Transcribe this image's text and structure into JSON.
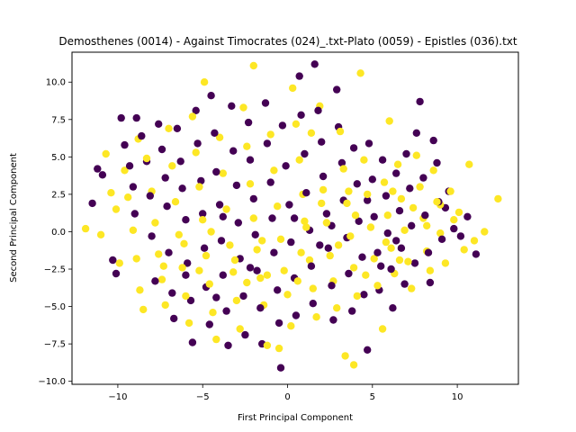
{
  "chart_data": {
    "type": "scatter",
    "title": "Demosthenes (0014) - Against Timocrates (024)_.txt-Plato (0059) - Epistles (036).txt",
    "xlabel": "First Principal Component",
    "ylabel": "Second Principal Component",
    "xlim": [
      -12.7,
      13.6
    ],
    "ylim": [
      -10.2,
      12.0
    ],
    "xticks": [
      -10,
      -5,
      0,
      5,
      10
    ],
    "yticks": [
      -10.0,
      -7.5,
      -5.0,
      -2.5,
      0.0,
      2.5,
      5.0,
      7.5,
      10.0
    ],
    "grid": false,
    "legend": "none",
    "colors": {
      "dark": "#440154",
      "light": "#fde725"
    },
    "series": [
      {
        "color": "#440154",
        "points": [
          [
            -11.2,
            4.2
          ],
          [
            -10.9,
            3.8
          ],
          [
            -11.5,
            1.9
          ],
          [
            -10.3,
            -1.9
          ],
          [
            -10.1,
            -2.8
          ],
          [
            -9.8,
            7.6
          ],
          [
            -9.6,
            5.8
          ],
          [
            -9.3,
            4.4
          ],
          [
            -9.1,
            3.0
          ],
          [
            -9.0,
            1.2
          ],
          [
            -8.9,
            7.6
          ],
          [
            -8.6,
            6.4
          ],
          [
            -8.3,
            4.7
          ],
          [
            -8.1,
            2.4
          ],
          [
            -8.0,
            -0.3
          ],
          [
            -7.8,
            -3.3
          ],
          [
            -7.6,
            7.2
          ],
          [
            -7.4,
            5.5
          ],
          [
            -7.2,
            3.6
          ],
          [
            -7.1,
            1.7
          ],
          [
            -7.0,
            -1.4
          ],
          [
            -6.8,
            -4.1
          ],
          [
            -6.7,
            -5.8
          ],
          [
            -6.5,
            6.9
          ],
          [
            -6.3,
            4.7
          ],
          [
            -6.2,
            2.9
          ],
          [
            -6.0,
            0.8
          ],
          [
            -5.9,
            -2.1
          ],
          [
            -5.7,
            -4.6
          ],
          [
            -5.6,
            -7.4
          ],
          [
            -5.4,
            8.1
          ],
          [
            -5.3,
            5.9
          ],
          [
            -5.1,
            3.4
          ],
          [
            -5.0,
            1.2
          ],
          [
            -4.9,
            -1.1
          ],
          [
            -4.8,
            -3.7
          ],
          [
            -4.6,
            -6.2
          ],
          [
            -4.5,
            9.1
          ],
          [
            -4.3,
            6.6
          ],
          [
            -4.2,
            4.0
          ],
          [
            -4.0,
            1.8
          ],
          [
            -3.9,
            -0.6
          ],
          [
            -3.8,
            -2.9
          ],
          [
            -3.6,
            -5.3
          ],
          [
            -3.5,
            -7.6
          ],
          [
            -3.3,
            8.4
          ],
          [
            -3.2,
            5.4
          ],
          [
            -3.0,
            3.1
          ],
          [
            -2.9,
            0.6
          ],
          [
            -2.8,
            -1.8
          ],
          [
            -2.6,
            -4.3
          ],
          [
            -2.5,
            -6.9
          ],
          [
            -2.3,
            7.3
          ],
          [
            -2.2,
            4.8
          ],
          [
            -2.0,
            2.2
          ],
          [
            -1.9,
            -0.2
          ],
          [
            -1.8,
            -2.6
          ],
          [
            -1.6,
            -5.1
          ],
          [
            -1.5,
            -7.5
          ],
          [
            -1.3,
            8.6
          ],
          [
            -1.2,
            5.9
          ],
          [
            -1.0,
            3.3
          ],
          [
            -0.9,
            0.9
          ],
          [
            -0.8,
            -1.4
          ],
          [
            -0.6,
            -3.9
          ],
          [
            -0.5,
            -6.1
          ],
          [
            -0.4,
            -9.1
          ],
          [
            -0.3,
            7.1
          ],
          [
            -0.1,
            4.4
          ],
          [
            0.1,
            1.8
          ],
          [
            0.2,
            -0.7
          ],
          [
            0.4,
            -3.1
          ],
          [
            0.5,
            -5.6
          ],
          [
            0.7,
            10.4
          ],
          [
            0.8,
            7.8
          ],
          [
            1.0,
            5.2
          ],
          [
            1.1,
            2.6
          ],
          [
            1.3,
            0.1
          ],
          [
            1.4,
            -2.3
          ],
          [
            1.5,
            -4.8
          ],
          [
            1.6,
            11.2
          ],
          [
            1.8,
            8.1
          ],
          [
            2.0,
            6.0
          ],
          [
            2.1,
            3.7
          ],
          [
            2.3,
            1.2
          ],
          [
            2.4,
            -1.1
          ],
          [
            2.6,
            -3.6
          ],
          [
            2.7,
            -5.9
          ],
          [
            2.9,
            9.5
          ],
          [
            3.0,
            7.0
          ],
          [
            3.2,
            4.6
          ],
          [
            3.3,
            2.1
          ],
          [
            3.5,
            -0.4
          ],
          [
            3.6,
            -2.8
          ],
          [
            3.8,
            -5.3
          ],
          [
            3.9,
            5.6
          ],
          [
            4.1,
            3.2
          ],
          [
            4.2,
            0.7
          ],
          [
            4.4,
            -1.7
          ],
          [
            4.5,
            -4.2
          ],
          [
            4.7,
            -7.9
          ],
          [
            4.8,
            5.9
          ],
          [
            5.0,
            3.5
          ],
          [
            5.1,
            1.0
          ],
          [
            5.3,
            -1.4
          ],
          [
            5.4,
            -3.9
          ],
          [
            5.6,
            4.8
          ],
          [
            5.8,
            2.4
          ],
          [
            5.9,
            -0.1
          ],
          [
            6.1,
            -2.5
          ],
          [
            6.2,
            -5.1
          ],
          [
            6.4,
            3.9
          ],
          [
            6.6,
            1.4
          ],
          [
            6.7,
            -1.1
          ],
          [
            6.9,
            -3.5
          ],
          [
            7.0,
            5.2
          ],
          [
            7.2,
            2.9
          ],
          [
            7.3,
            0.4
          ],
          [
            7.5,
            -2.1
          ],
          [
            7.6,
            6.6
          ],
          [
            7.8,
            8.7
          ],
          [
            8.0,
            3.6
          ],
          [
            8.1,
            1.1
          ],
          [
            8.3,
            -1.4
          ],
          [
            8.4,
            -3.4
          ],
          [
            8.6,
            6.1
          ],
          [
            8.8,
            4.6
          ],
          [
            8.9,
            2.0
          ],
          [
            9.1,
            -0.5
          ],
          [
            9.3,
            1.6
          ],
          [
            9.5,
            2.7
          ],
          [
            9.8,
            0.2
          ],
          [
            10.2,
            -0.3
          ],
          [
            10.6,
            1.0
          ],
          [
            11.1,
            -1.5
          ],
          [
            -6.0,
            -2.9
          ],
          [
            -4.2,
            -4.4
          ],
          [
            -2.2,
            -2.4
          ],
          [
            0.4,
            0.9
          ],
          [
            2.6,
            0.4
          ],
          [
            4.7,
            2.1
          ],
          [
            6.4,
            -0.6
          ],
          [
            -3.8,
            1.0
          ],
          [
            1.9,
            -0.9
          ],
          [
            5.5,
            -2.3
          ]
        ]
      },
      {
        "color": "#fde725",
        "points": [
          [
            -11.9,
            0.2
          ],
          [
            -11.0,
            -0.2
          ],
          [
            -10.7,
            5.2
          ],
          [
            -10.4,
            2.6
          ],
          [
            -10.1,
            1.5
          ],
          [
            -9.9,
            -2.1
          ],
          [
            -9.6,
            4.1
          ],
          [
            -9.4,
            2.3
          ],
          [
            -9.1,
            0.1
          ],
          [
            -8.9,
            -1.8
          ],
          [
            -8.7,
            -3.9
          ],
          [
            -8.5,
            -5.2
          ],
          [
            -8.3,
            4.9
          ],
          [
            -8.0,
            2.7
          ],
          [
            -7.8,
            0.6
          ],
          [
            -7.6,
            -1.5
          ],
          [
            -7.4,
            -3.2
          ],
          [
            -7.2,
            -4.9
          ],
          [
            -7.0,
            6.9
          ],
          [
            -6.8,
            4.4
          ],
          [
            -6.6,
            2.0
          ],
          [
            -6.4,
            -0.2
          ],
          [
            -6.2,
            -2.4
          ],
          [
            -6.0,
            -4.3
          ],
          [
            -5.8,
            -6.1
          ],
          [
            -5.6,
            7.7
          ],
          [
            -5.4,
            5.3
          ],
          [
            -5.2,
            3.0
          ],
          [
            -5.0,
            0.8
          ],
          [
            -4.8,
            -1.6
          ],
          [
            -4.6,
            -3.5
          ],
          [
            -4.4,
            -5.4
          ],
          [
            -4.2,
            -7.2
          ],
          [
            -4.9,
            10.0
          ],
          [
            -4.0,
            6.3
          ],
          [
            -3.8,
            3.9
          ],
          [
            -3.6,
            1.5
          ],
          [
            -3.4,
            -0.9
          ],
          [
            -3.2,
            -2.7
          ],
          [
            -3.0,
            -4.6
          ],
          [
            -2.8,
            -6.5
          ],
          [
            -2.6,
            8.3
          ],
          [
            -2.4,
            5.7
          ],
          [
            -2.2,
            3.2
          ],
          [
            -2.0,
            0.9
          ],
          [
            -1.8,
            -1.2
          ],
          [
            -1.6,
            -3.1
          ],
          [
            -1.4,
            -4.9
          ],
          [
            -1.2,
            -7.6
          ],
          [
            -2.0,
            11.1
          ],
          [
            -1.0,
            6.5
          ],
          [
            -0.8,
            4.1
          ],
          [
            -0.6,
            1.7
          ],
          [
            -0.4,
            -0.5
          ],
          [
            -0.2,
            -2.6
          ],
          [
            0.0,
            -4.2
          ],
          [
            0.2,
            -6.3
          ],
          [
            -0.5,
            -7.8
          ],
          [
            0.3,
            9.6
          ],
          [
            0.5,
            7.2
          ],
          [
            0.7,
            4.8
          ],
          [
            0.9,
            2.5
          ],
          [
            1.1,
            0.3
          ],
          [
            1.3,
            -1.9
          ],
          [
            1.5,
            -3.8
          ],
          [
            1.7,
            -5.7
          ],
          [
            1.4,
            6.6
          ],
          [
            1.9,
            8.4
          ],
          [
            2.1,
            2.8
          ],
          [
            2.3,
            0.6
          ],
          [
            2.5,
            -1.6
          ],
          [
            2.7,
            -3.3
          ],
          [
            2.9,
            -5.1
          ],
          [
            3.1,
            6.7
          ],
          [
            3.3,
            4.2
          ],
          [
            3.5,
            1.9
          ],
          [
            3.7,
            -0.3
          ],
          [
            3.9,
            -2.4
          ],
          [
            4.1,
            -4.3
          ],
          [
            3.4,
            -8.3
          ],
          [
            3.9,
            -8.9
          ],
          [
            4.3,
            10.6
          ],
          [
            4.5,
            4.8
          ],
          [
            4.7,
            2.5
          ],
          [
            4.9,
            0.3
          ],
          [
            5.1,
            -1.8
          ],
          [
            5.3,
            -3.6
          ],
          [
            5.6,
            -6.5
          ],
          [
            5.7,
            3.3
          ],
          [
            5.9,
            1.1
          ],
          [
            6.1,
            -1.1
          ],
          [
            6.0,
            7.4
          ],
          [
            6.3,
            -2.8
          ],
          [
            6.5,
            4.5
          ],
          [
            6.7,
            2.2
          ],
          [
            6.9,
            0.1
          ],
          [
            7.1,
            -2.0
          ],
          [
            7.3,
            -3.8
          ],
          [
            7.6,
            5.1
          ],
          [
            7.8,
            3.0
          ],
          [
            8.0,
            0.9
          ],
          [
            8.2,
            -1.3
          ],
          [
            8.4,
            -2.6
          ],
          [
            8.6,
            4.1
          ],
          [
            8.8,
            2.0
          ],
          [
            9.0,
            -0.1
          ],
          [
            9.3,
            -2.1
          ],
          [
            9.6,
            2.7
          ],
          [
            9.8,
            0.8
          ],
          [
            10.1,
            1.3
          ],
          [
            10.4,
            -1.2
          ],
          [
            10.7,
            4.5
          ],
          [
            11.0,
            -0.6
          ],
          [
            11.6,
            0.0
          ],
          [
            12.4,
            2.2
          ],
          [
            -8.8,
            6.2
          ],
          [
            -6.1,
            -0.8
          ],
          [
            -3.1,
            -1.9
          ],
          [
            -1.2,
            -2.9
          ],
          [
            0.8,
            -1.4
          ],
          [
            2.0,
            1.9
          ],
          [
            4.0,
            1.1
          ],
          [
            5.8,
            -0.7
          ],
          [
            7.4,
            1.6
          ],
          [
            -5.2,
            -2.6
          ],
          [
            -2.4,
            -3.4
          ],
          [
            0.6,
            -3.3
          ],
          [
            3.0,
            -0.9
          ],
          [
            4.6,
            -2.9
          ],
          [
            6.6,
            -1.9
          ],
          [
            8.2,
            0.4
          ],
          [
            -7.3,
            -2.3
          ],
          [
            -4.5,
            0.0
          ],
          [
            -1.5,
            -0.6
          ],
          [
            1.0,
            0.7
          ],
          [
            3.6,
            2.7
          ],
          [
            6.2,
            2.7
          ],
          [
            9.0,
            1.8
          ]
        ]
      }
    ]
  }
}
